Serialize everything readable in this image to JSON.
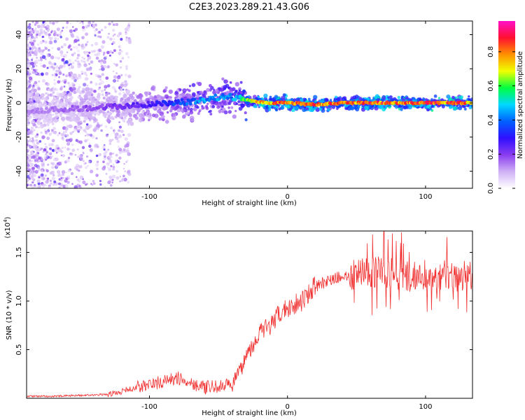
{
  "title": "C2E3.2023.289.21.43.G06",
  "colors": {
    "snr_line": "#f03030",
    "axis": "#000000",
    "colormap": [
      "#ffffff",
      "#cfb0f5",
      "#8a3cf0",
      "#3010ff",
      "#0060ff",
      "#00d8ff",
      "#00ff40",
      "#f0ff00",
      "#ff9000",
      "#ff1030",
      "#ff10c8"
    ]
  },
  "top_panel": {
    "xlabel": "Height of straight line (km)",
    "ylabel": "Frequency (Hz)",
    "xlim": [
      -189,
      134
    ],
    "ylim": [
      -50,
      48
    ],
    "xticks": [
      -100,
      0,
      100
    ],
    "yticks": [
      -40,
      -20,
      0,
      20,
      40
    ]
  },
  "colorbar": {
    "label": "Normalized spectral amplitude",
    "range": [
      0,
      0.98
    ],
    "ticks": [
      "0.0",
      "0.2",
      "0.4",
      "0.6",
      "0.8"
    ]
  },
  "bottom_panel": {
    "xlabel": "Height of straight line (km)",
    "ylabel": "SNR (10 * v/v)",
    "multiplier": "(x10",
    "multiplier_exp": "4",
    "xlim": [
      -189,
      134
    ],
    "ylim": [
      0,
      1.72
    ],
    "xticks": [
      -100,
      0,
      100
    ],
    "yticks": [
      "0.5",
      "1.0",
      "1.5"
    ]
  },
  "chart_data": [
    {
      "type": "heatmap",
      "title": "C2E3.2023.289.21.43.G06",
      "xlabel": "Height of straight line (km)",
      "ylabel": "Frequency (Hz)",
      "colorbar_label": "Normalized spectral amplitude",
      "xlim": [
        -189,
        134
      ],
      "ylim": [
        -50,
        48
      ],
      "ridge_frequency_hz": {
        "x": [
          -189,
          -150,
          -120,
          -100,
          -80,
          -60,
          -45,
          -35,
          -25,
          -15,
          0,
          20,
          40,
          60,
          80,
          100,
          120,
          134
        ],
        "y": [
          -5,
          -3,
          -2,
          -1,
          0,
          2,
          4,
          3,
          1,
          0,
          0,
          -1,
          0,
          0,
          0,
          0,
          0,
          0
        ]
      },
      "peak_amplitude": {
        "x": [
          -189,
          -150,
          -120,
          -100,
          -80,
          -60,
          -40,
          -20,
          0,
          20,
          40,
          60,
          80,
          100,
          120,
          134
        ],
        "y": [
          0.15,
          0.2,
          0.25,
          0.3,
          0.4,
          0.5,
          0.5,
          0.9,
          0.92,
          0.93,
          0.9,
          0.95,
          0.94,
          0.95,
          0.93,
          0.9
        ]
      }
    },
    {
      "type": "line",
      "xlabel": "Height of straight line (km)",
      "ylabel": "SNR (10 * v/v)",
      "xlim": [
        -189,
        134
      ],
      "ylim": [
        0,
        1.72
      ],
      "series": [
        {
          "x": [
            -189,
            -170,
            -150,
            -130,
            -120,
            -110,
            -100,
            -90,
            -80,
            -70,
            -60,
            -50,
            -45,
            -40,
            -35,
            -30,
            -25,
            -20,
            -15,
            -10,
            -5,
            0,
            5,
            10,
            15,
            20,
            25,
            30,
            35,
            40,
            50,
            60,
            70,
            80,
            90,
            100,
            110,
            120,
            134
          ],
          "y": [
            0.02,
            0.02,
            0.03,
            0.04,
            0.07,
            0.11,
            0.14,
            0.17,
            0.21,
            0.16,
            0.11,
            0.12,
            0.13,
            0.15,
            0.25,
            0.45,
            0.55,
            0.68,
            0.72,
            0.78,
            0.88,
            0.93,
            0.97,
            1.0,
            1.08,
            1.15,
            1.18,
            1.21,
            1.24,
            1.25,
            1.27,
            1.3,
            1.3,
            1.27,
            1.25,
            1.28,
            1.27,
            1.25,
            1.28
          ]
        }
      ]
    }
  ]
}
